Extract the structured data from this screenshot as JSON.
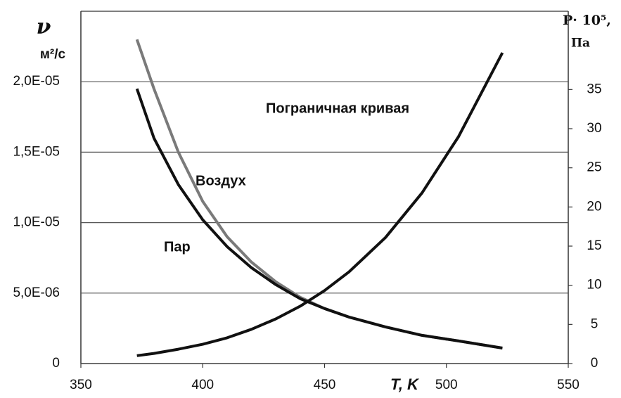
{
  "chart_data": {
    "type": "line",
    "y_label": "ν",
    "y_unit": "м²/с",
    "y2_label": "P· 10⁵,",
    "y2_unit": "Па",
    "x_label": "T, K",
    "x": [
      373,
      380,
      390,
      400,
      410,
      420,
      430,
      440,
      450,
      460,
      475,
      490,
      505,
      523
    ],
    "series": [
      {
        "name": "Воздух",
        "color": "#7a7a7a",
        "values": [
          2.3e-05,
          1.95e-05,
          1.5e-05,
          1.15e-05,
          9e-06,
          7.2e-06,
          5.8e-06,
          4.7e-06,
          3.9e-06,
          3.3e-06,
          2.6e-06,
          2e-06,
          1.6e-06,
          1.1e-06
        ]
      },
      {
        "name": "Пар",
        "color": "#111111",
        "values": [
          1.95e-05,
          1.6e-05,
          1.27e-05,
          1.02e-05,
          8.3e-06,
          6.8e-06,
          5.6e-06,
          4.6e-06,
          3.9e-06,
          3.3e-06,
          2.6e-06,
          2e-06,
          1.6e-06,
          1.1e-06
        ]
      },
      {
        "name": "Пограничная кривая",
        "color": "#111111",
        "axis": "y2",
        "values": [
          1.01,
          1.29,
          1.83,
          2.46,
          3.29,
          4.37,
          5.7,
          7.33,
          9.32,
          11.7,
          16.1,
          21.8,
          29.0,
          39.7
        ]
      }
    ],
    "xlim": [
      350,
      550
    ],
    "xticks": [
      350,
      400,
      450,
      500,
      550
    ],
    "ylim": [
      0,
      2.5e-05
    ],
    "yticks": [
      0,
      {
        "value": 5e-06,
        "label": "5,0E-06"
      },
      {
        "value": 1e-05,
        "label": "1,0E-05"
      },
      {
        "value": 1.5e-05,
        "label": "1,5E-05"
      },
      {
        "value": 2e-05,
        "label": "2,0E-05"
      }
    ],
    "y2lim": [
      0,
      45
    ],
    "y2ticks": [
      0,
      5,
      10,
      15,
      20,
      25,
      30,
      35
    ],
    "grid": true
  }
}
